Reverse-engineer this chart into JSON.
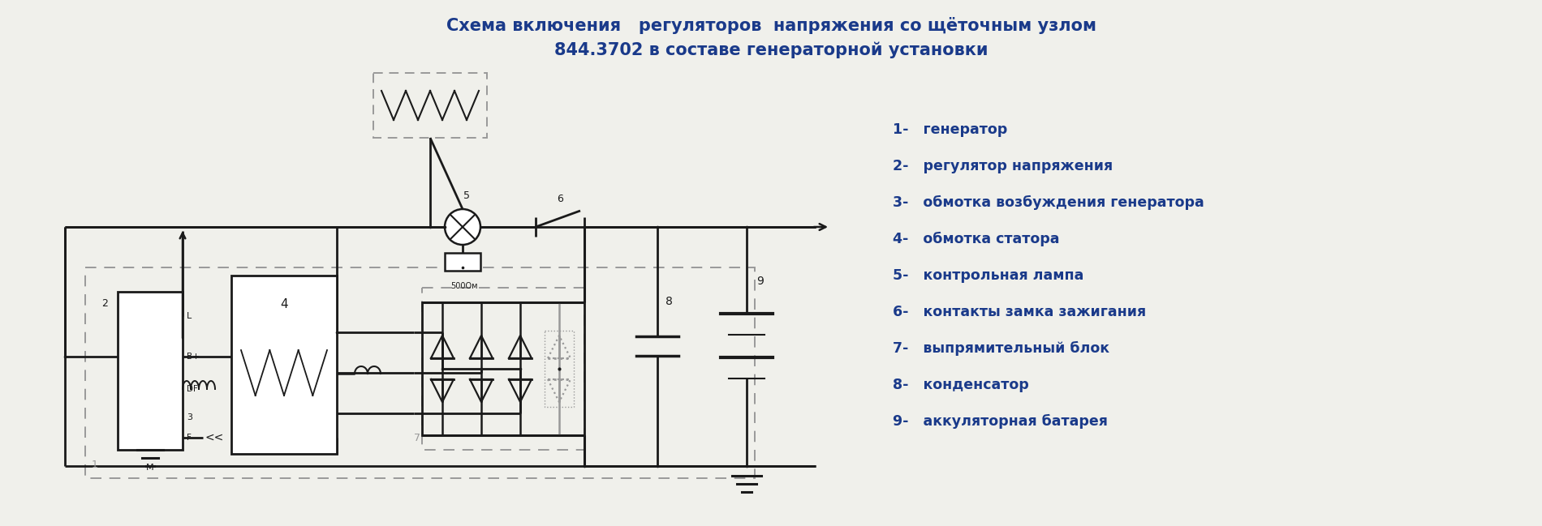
{
  "title_line1": "Схема включения   регуляторов  напряжения со щёточным узлом",
  "title_line2": "844.3702 в составе генераторной установки",
  "title_color": "#1a3a8a",
  "title_fontsize": 15,
  "legend_items": [
    "1-   генератор",
    "2-   регулятор напряжения",
    "3-   обмотка возбуждения генератора",
    "4-   обмотка статора",
    "5-   контрольная лампа",
    "6-   контакты замка зажигания",
    "7-   выпрямительный блок",
    "8-   конденсатор",
    "9-   аккуляторная батарея"
  ],
  "legend_color": "#1a3a8a",
  "legend_fontsize": 12.5,
  "line_color": "#1a1a1a",
  "dashed_color": "#999999",
  "bg_color": "#f0f0eb"
}
